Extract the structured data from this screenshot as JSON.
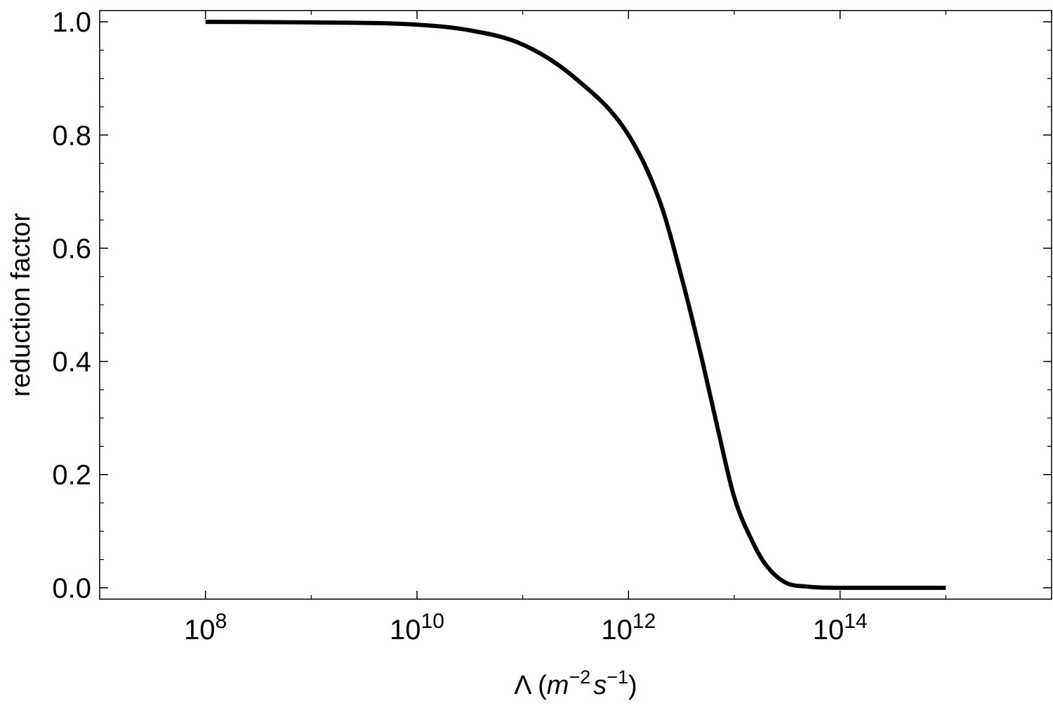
{
  "chart_data": {
    "type": "line",
    "title": "",
    "xlabel": {
      "base": "Λ (",
      "m": "m",
      "m_exp": "−2",
      "s": "s",
      "s_exp": "−1",
      "close": ")"
    },
    "ylabel": "reduction factor",
    "x_scale": "log",
    "xlim": [
      10000000,
      10000000000000000
    ],
    "ylim": [
      -0.02,
      1.02
    ],
    "grid": false,
    "legend": "none",
    "x_ticks": [
      {
        "value": 100000000,
        "base": "10",
        "exp": "8"
      },
      {
        "value": 10000000000,
        "base": "10",
        "exp": "10"
      },
      {
        "value": 1000000000000,
        "base": "10",
        "exp": "12"
      },
      {
        "value": 100000000000000,
        "base": "10",
        "exp": "14"
      }
    ],
    "y_ticks": [
      {
        "value": 0.0,
        "label": "0.0"
      },
      {
        "value": 0.2,
        "label": "0.2"
      },
      {
        "value": 0.4,
        "label": "0.4"
      },
      {
        "value": 0.6,
        "label": "0.6"
      },
      {
        "value": 0.8,
        "label": "0.8"
      },
      {
        "value": 1.0,
        "label": "1.0"
      }
    ],
    "series": [
      {
        "color": "#000000",
        "x": [
          100000000,
          1000000000,
          10000000000,
          31600000000,
          100000000000,
          316000000000,
          1000000000000,
          2000000000000,
          3160000000000,
          5000000000000,
          7000000000000,
          10000000000000,
          15000000000000,
          20000000000000,
          30000000000000,
          50000000000000,
          100000000000000,
          1000000000000000
        ],
        "y": [
          1.0,
          0.999,
          0.995,
          0.985,
          0.96,
          0.9,
          0.8,
          0.68,
          0.55,
          0.4,
          0.28,
          0.16,
          0.08,
          0.04,
          0.01,
          0.002,
          0.0,
          0.0
        ]
      }
    ]
  }
}
